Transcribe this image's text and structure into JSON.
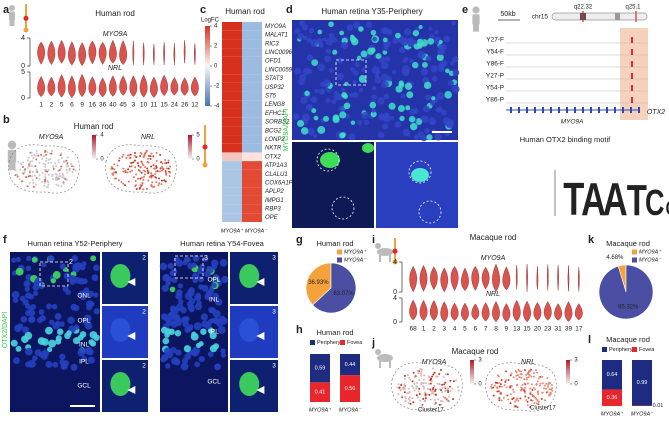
{
  "panel_letters": [
    "a",
    "b",
    "c",
    "d",
    "e",
    "f",
    "g",
    "h",
    "i",
    "j",
    "k",
    "l"
  ],
  "a": {
    "title": "Human rod",
    "genes": [
      "MYO9A",
      "NRL"
    ],
    "yticks": [
      [
        4,
        0
      ],
      [
        5,
        0
      ]
    ],
    "clusters": [
      "1",
      "2",
      "5",
      "6",
      "9",
      "16",
      "36",
      "40",
      "45",
      "3",
      "10",
      "11",
      "15",
      "24",
      "26",
      "12"
    ]
  },
  "b": {
    "title": "Human rod",
    "genes": [
      "MYO9A",
      "NRL"
    ],
    "colorbar_ticks": [
      [
        4,
        0
      ],
      [
        5,
        0
      ]
    ]
  },
  "c": {
    "title": "Human rod",
    "scale_label": "LogFC",
    "scale_ticks": [
      4,
      2,
      0,
      -2,
      -4
    ],
    "genes": [
      "MYO9A",
      "MALAT1",
      "RIC3",
      "LINC00969",
      "OFD1",
      "LINC00599",
      "STAT3",
      "USP32",
      "ST5",
      "LENG8",
      "EFHC1",
      "SORBS2",
      "BCG2",
      "LONP2",
      "NKTR",
      "OTX2",
      "ATP1A3",
      "CLALU1",
      "COX6A1P2",
      "APLP2",
      "IMPG1",
      "RBP3",
      "OPE"
    ],
    "columns": [
      "MYO9A⁺",
      "MYO9A⁻"
    ]
  },
  "d": {
    "title": "Human retina Y35-Periphery",
    "stain": "MYO9A/DAPI"
  },
  "e": {
    "scale": "50kb",
    "chromosome": "chr15",
    "bands": [
      "q22.32",
      "q25.1"
    ],
    "tracks": [
      "Y27-F",
      "Y54-F",
      "Y86-F",
      "Y27-P",
      "Y54-P",
      "Y86-P"
    ],
    "genes": [
      "MYO9A",
      "OTX2"
    ],
    "motif_title": "Human OTX2 binding motif",
    "motif": [
      "T",
      "A",
      "A",
      "T",
      "C",
      "C"
    ]
  },
  "f": {
    "titles": [
      "Human retina Y52-Periphery",
      "Human retina Y54-Fovea"
    ],
    "stain": "OTX2/DAPI",
    "layers": [
      "ONL",
      "OPL",
      "INL",
      "IPL",
      "GCL"
    ],
    "insets": [
      "2",
      "3"
    ]
  },
  "i": {
    "title": "Macaque rod",
    "genes": [
      "MYO9A",
      "NRL"
    ],
    "yticks": [
      [
        4,
        0
      ],
      [
        4,
        0
      ]
    ],
    "clusters": [
      "68",
      "1",
      "2",
      "3",
      "4",
      "5",
      "6",
      "7",
      "8",
      "9",
      "13",
      "15",
      "20",
      "23",
      "31",
      "39",
      "17"
    ]
  },
  "j": {
    "title": "Macaque rod",
    "genes": [
      "MYO9A",
      "NRL"
    ],
    "colorbar_ticks": [
      [
        3,
        0
      ],
      [
        3,
        0
      ]
    ],
    "cluster": "Cluster17"
  },
  "chart_data": [
    {
      "type": "pie",
      "title": "Human rod",
      "categories": [
        "MYO9A⁺",
        "MYO9A⁻"
      ],
      "values": [
        36.93,
        63.07
      ],
      "value_labels": [
        "36.93%",
        "63.07%"
      ],
      "colors": [
        "#f5a23d",
        "#4a4fa3"
      ]
    },
    {
      "type": "bar",
      "stacked": true,
      "title": "Human rod",
      "categories": [
        "MYO9A⁺",
        "MYO9A⁻"
      ],
      "series": [
        {
          "name": "Periphery",
          "color": "#1d2b80",
          "values": [
            0.59,
            0.44
          ]
        },
        {
          "name": "Fovea",
          "color": "#e8262b",
          "values": [
            0.41,
            0.56
          ]
        }
      ]
    },
    {
      "type": "pie",
      "title": "Macaque rod",
      "categories": [
        "MYO9A⁺",
        "MYO9A⁻"
      ],
      "values": [
        4.68,
        95.32
      ],
      "value_labels": [
        "4.68%",
        "95.32%"
      ],
      "colors": [
        "#f5a23d",
        "#4a4fa3"
      ]
    },
    {
      "type": "bar",
      "stacked": true,
      "title": "Macaque rod",
      "categories": [
        "MYO9A⁺",
        "MYO9A⁻"
      ],
      "series": [
        {
          "name": "Periphery",
          "color": "#1d2b80",
          "values": [
            0.64,
            0.99
          ]
        },
        {
          "name": "Fovea",
          "color": "#e8262b",
          "values": [
            0.36,
            0.01
          ]
        }
      ]
    }
  ]
}
